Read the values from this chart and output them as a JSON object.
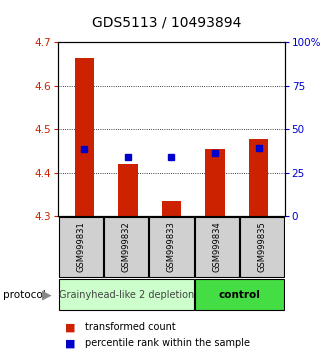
{
  "title": "GDS5113 / 10493894",
  "samples": [
    "GSM999831",
    "GSM999832",
    "GSM999833",
    "GSM999834",
    "GSM999835"
  ],
  "bar_bottom": 4.3,
  "bar_tops": [
    4.665,
    4.42,
    4.335,
    4.455,
    4.478
  ],
  "blue_y": [
    4.455,
    4.435,
    4.435,
    4.446,
    4.457
  ],
  "ylim": [
    4.3,
    4.7
  ],
  "y2lim": [
    0,
    100
  ],
  "yticks": [
    4.3,
    4.4,
    4.5,
    4.6,
    4.7
  ],
  "y2ticks": [
    0,
    25,
    50,
    75,
    100
  ],
  "y2ticklabels": [
    "0",
    "25",
    "50",
    "75",
    "100%"
  ],
  "bar_color": "#cc2200",
  "blue_color": "#0000cc",
  "group1_label": "Grainyhead-like 2 depletion",
  "group2_label": "control",
  "group1_color": "#ccffcc",
  "group2_color": "#44dd44",
  "protocol_label": "protocol",
  "legend1": "transformed count",
  "legend2": "percentile rank within the sample",
  "title_fontsize": 10,
  "tick_fontsize": 7.5,
  "sample_fontsize": 6.0,
  "legend_fontsize": 7.0,
  "proto_fontsize": 7.5
}
